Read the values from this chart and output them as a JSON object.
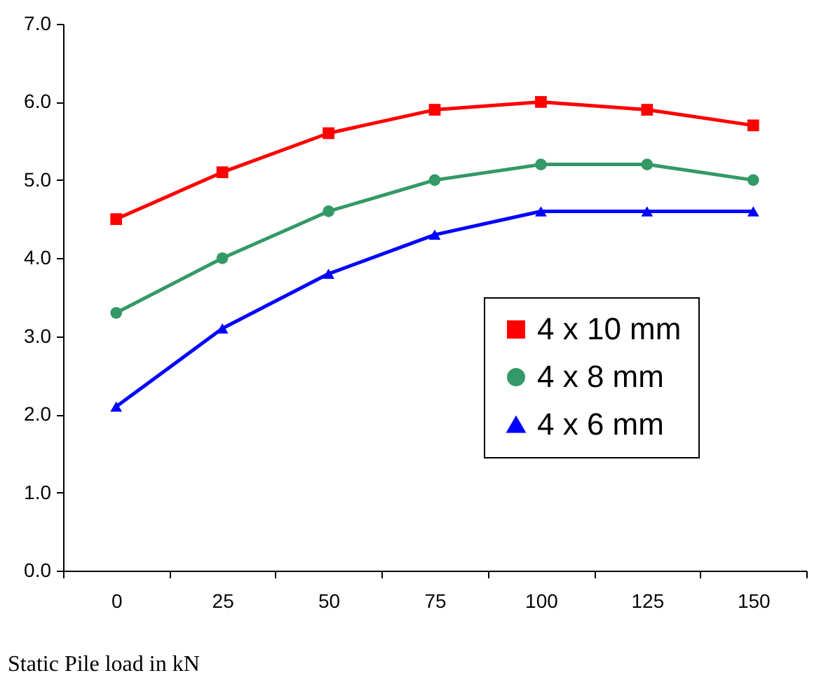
{
  "chart_data": {
    "type": "line",
    "xlabel": "Static Pile load in kN",
    "categories": [
      "0",
      "25",
      "50",
      "75",
      "100",
      "125",
      "150"
    ],
    "series": [
      {
        "name": "4 x 10 mm",
        "color": "#ff0000",
        "marker": "square",
        "values": [
          4.5,
          5.1,
          5.6,
          5.9,
          6.0,
          5.9,
          5.7
        ]
      },
      {
        "name": "4 x 8 mm",
        "color": "#339966",
        "marker": "circle",
        "values": [
          3.3,
          4.0,
          4.6,
          5.0,
          5.2,
          5.2,
          5.0
        ]
      },
      {
        "name": "4 x 6 mm",
        "color": "#0000ff",
        "marker": "triangle",
        "values": [
          2.1,
          3.1,
          3.8,
          4.3,
          4.6,
          4.6,
          4.6
        ]
      }
    ],
    "ylim": [
      0,
      7
    ],
    "yticks": [
      {
        "value": 0,
        "label": "0.0"
      },
      {
        "value": 1,
        "label": "1.0"
      },
      {
        "value": 2,
        "label": "2.0"
      },
      {
        "value": 3,
        "label": "3.0"
      },
      {
        "value": 4,
        "label": "4.0"
      },
      {
        "value": 5,
        "label": "5.0"
      },
      {
        "value": 6,
        "label": "6.0"
      },
      {
        "value": 7,
        "label": "7.0"
      }
    ],
    "grid": false,
    "legend": "right",
    "line_style": "solid"
  }
}
